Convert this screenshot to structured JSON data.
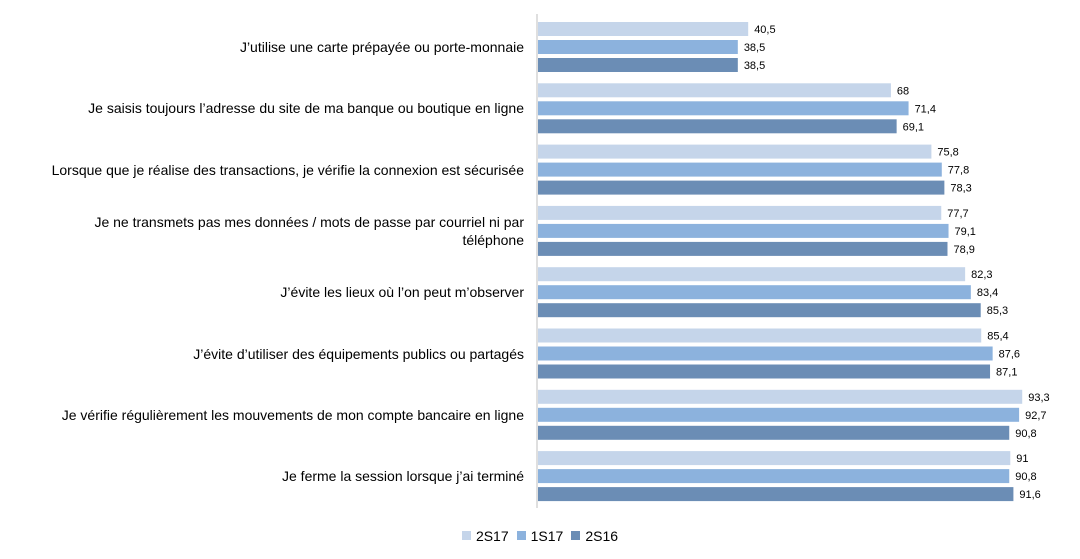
{
  "chart_data": {
    "type": "bar",
    "orientation": "horizontal",
    "categories": [
      "J’utilise une carte prépayée ou porte-monnaie",
      "Je saisis toujours l’adresse du site de ma banque ou boutique en ligne",
      "Lorsque que je réalise des transactions, je vérifie la connexion est sécurisée",
      "Je ne transmets pas mes données / mots de passe par courriel ni par téléphone",
      "J’évite les lieux où l’on peut m’observer",
      "J’évite d’utiliser des équipements publics ou partagés",
      "Je vérifie régulièrement les mouvements de mon compte bancaire en ligne",
      "Je ferme la session lorsque j’ai terminé"
    ],
    "category_lines": [
      [
        "J’utilise une carte prépayée ou porte-monnaie"
      ],
      [
        "Je saisis toujours l’adresse du site de ma banque ou boutique en ligne"
      ],
      [
        "Lorsque que je réalise des transactions, je vérifie la connexion est sécurisée"
      ],
      [
        "Je ne transmets pas mes données / mots de passe par courriel ni par",
        "téléphone"
      ],
      [
        "J’évite les lieux où l’on peut m’observer"
      ],
      [
        "J’évite d’utiliser des équipements publics ou partagés"
      ],
      [
        "Je vérifie régulièrement les mouvements de mon compte bancaire en ligne"
      ],
      [
        "Je ferme la session lorsque j’ai terminé"
      ]
    ],
    "series": [
      {
        "name": "2S17",
        "color": "#c5d5ea",
        "values": [
          40.5,
          68,
          75.8,
          77.7,
          82.3,
          85.4,
          93.3,
          91
        ],
        "labels": [
          "40,5",
          "68",
          "75,8",
          "77,7",
          "82,3",
          "85,4",
          "93,3",
          "91"
        ]
      },
      {
        "name": "1S17",
        "color": "#8cb2dd",
        "values": [
          38.5,
          71.4,
          77.8,
          79.1,
          83.4,
          87.6,
          92.7,
          90.8
        ],
        "labels": [
          "38,5",
          "71,4",
          "77,8",
          "79,1",
          "83,4",
          "87,6",
          "92,7",
          "90,8"
        ]
      },
      {
        "name": "2S16",
        "color": "#6b8db5",
        "values": [
          38.5,
          69.1,
          78.3,
          78.9,
          85.3,
          87.1,
          90.8,
          91.6
        ],
        "labels": [
          "38,5",
          "69,1",
          "78,3",
          "78,9",
          "85,3",
          "87,1",
          "90,8",
          "91,6"
        ]
      }
    ],
    "xlim": [
      0,
      100
    ],
    "grid": false,
    "legend": "bottom-center"
  }
}
